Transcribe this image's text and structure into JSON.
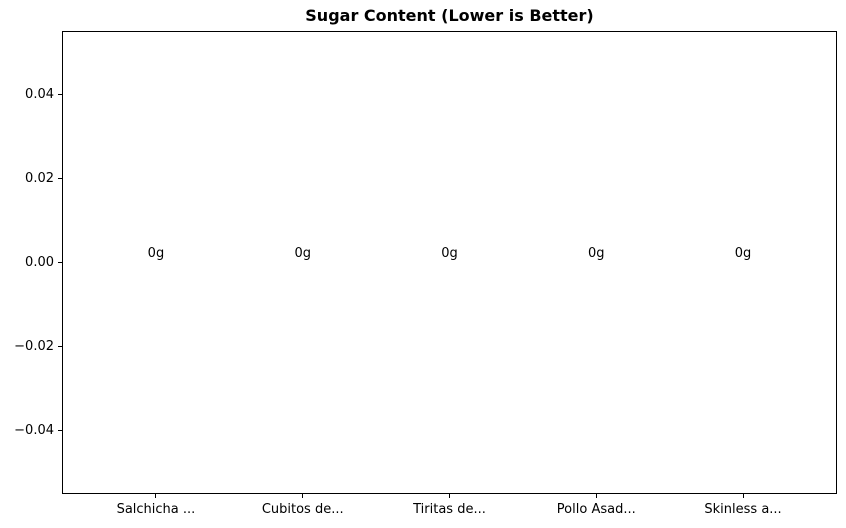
{
  "figure": {
    "background_color": "#ffffff",
    "axis_color": "#000000",
    "text_color": "#000000"
  },
  "chart_data": {
    "type": "bar",
    "title": "Sugar Content (Lower is Better)",
    "categories": [
      "Salchicha ...",
      "Cubitos de...",
      "Tiritas de...",
      "Pollo Asad...",
      "Skinless a..."
    ],
    "values": [
      0,
      0,
      0,
      0,
      0
    ],
    "bar_labels": [
      "0g",
      "0g",
      "0g",
      "0g",
      "0g"
    ],
    "xlabel": "",
    "ylabel": "",
    "ylim": [
      -0.055,
      0.055
    ],
    "xlim": [
      -0.64,
      4.64
    ],
    "yticks": [
      0.04,
      0.02,
      0.0,
      -0.02,
      -0.04
    ],
    "ytick_labels": [
      "0.04",
      "0.02",
      "0.00",
      "−0.02",
      "−0.04"
    ],
    "grid": false,
    "legend": null,
    "bar_width": 0.8
  }
}
